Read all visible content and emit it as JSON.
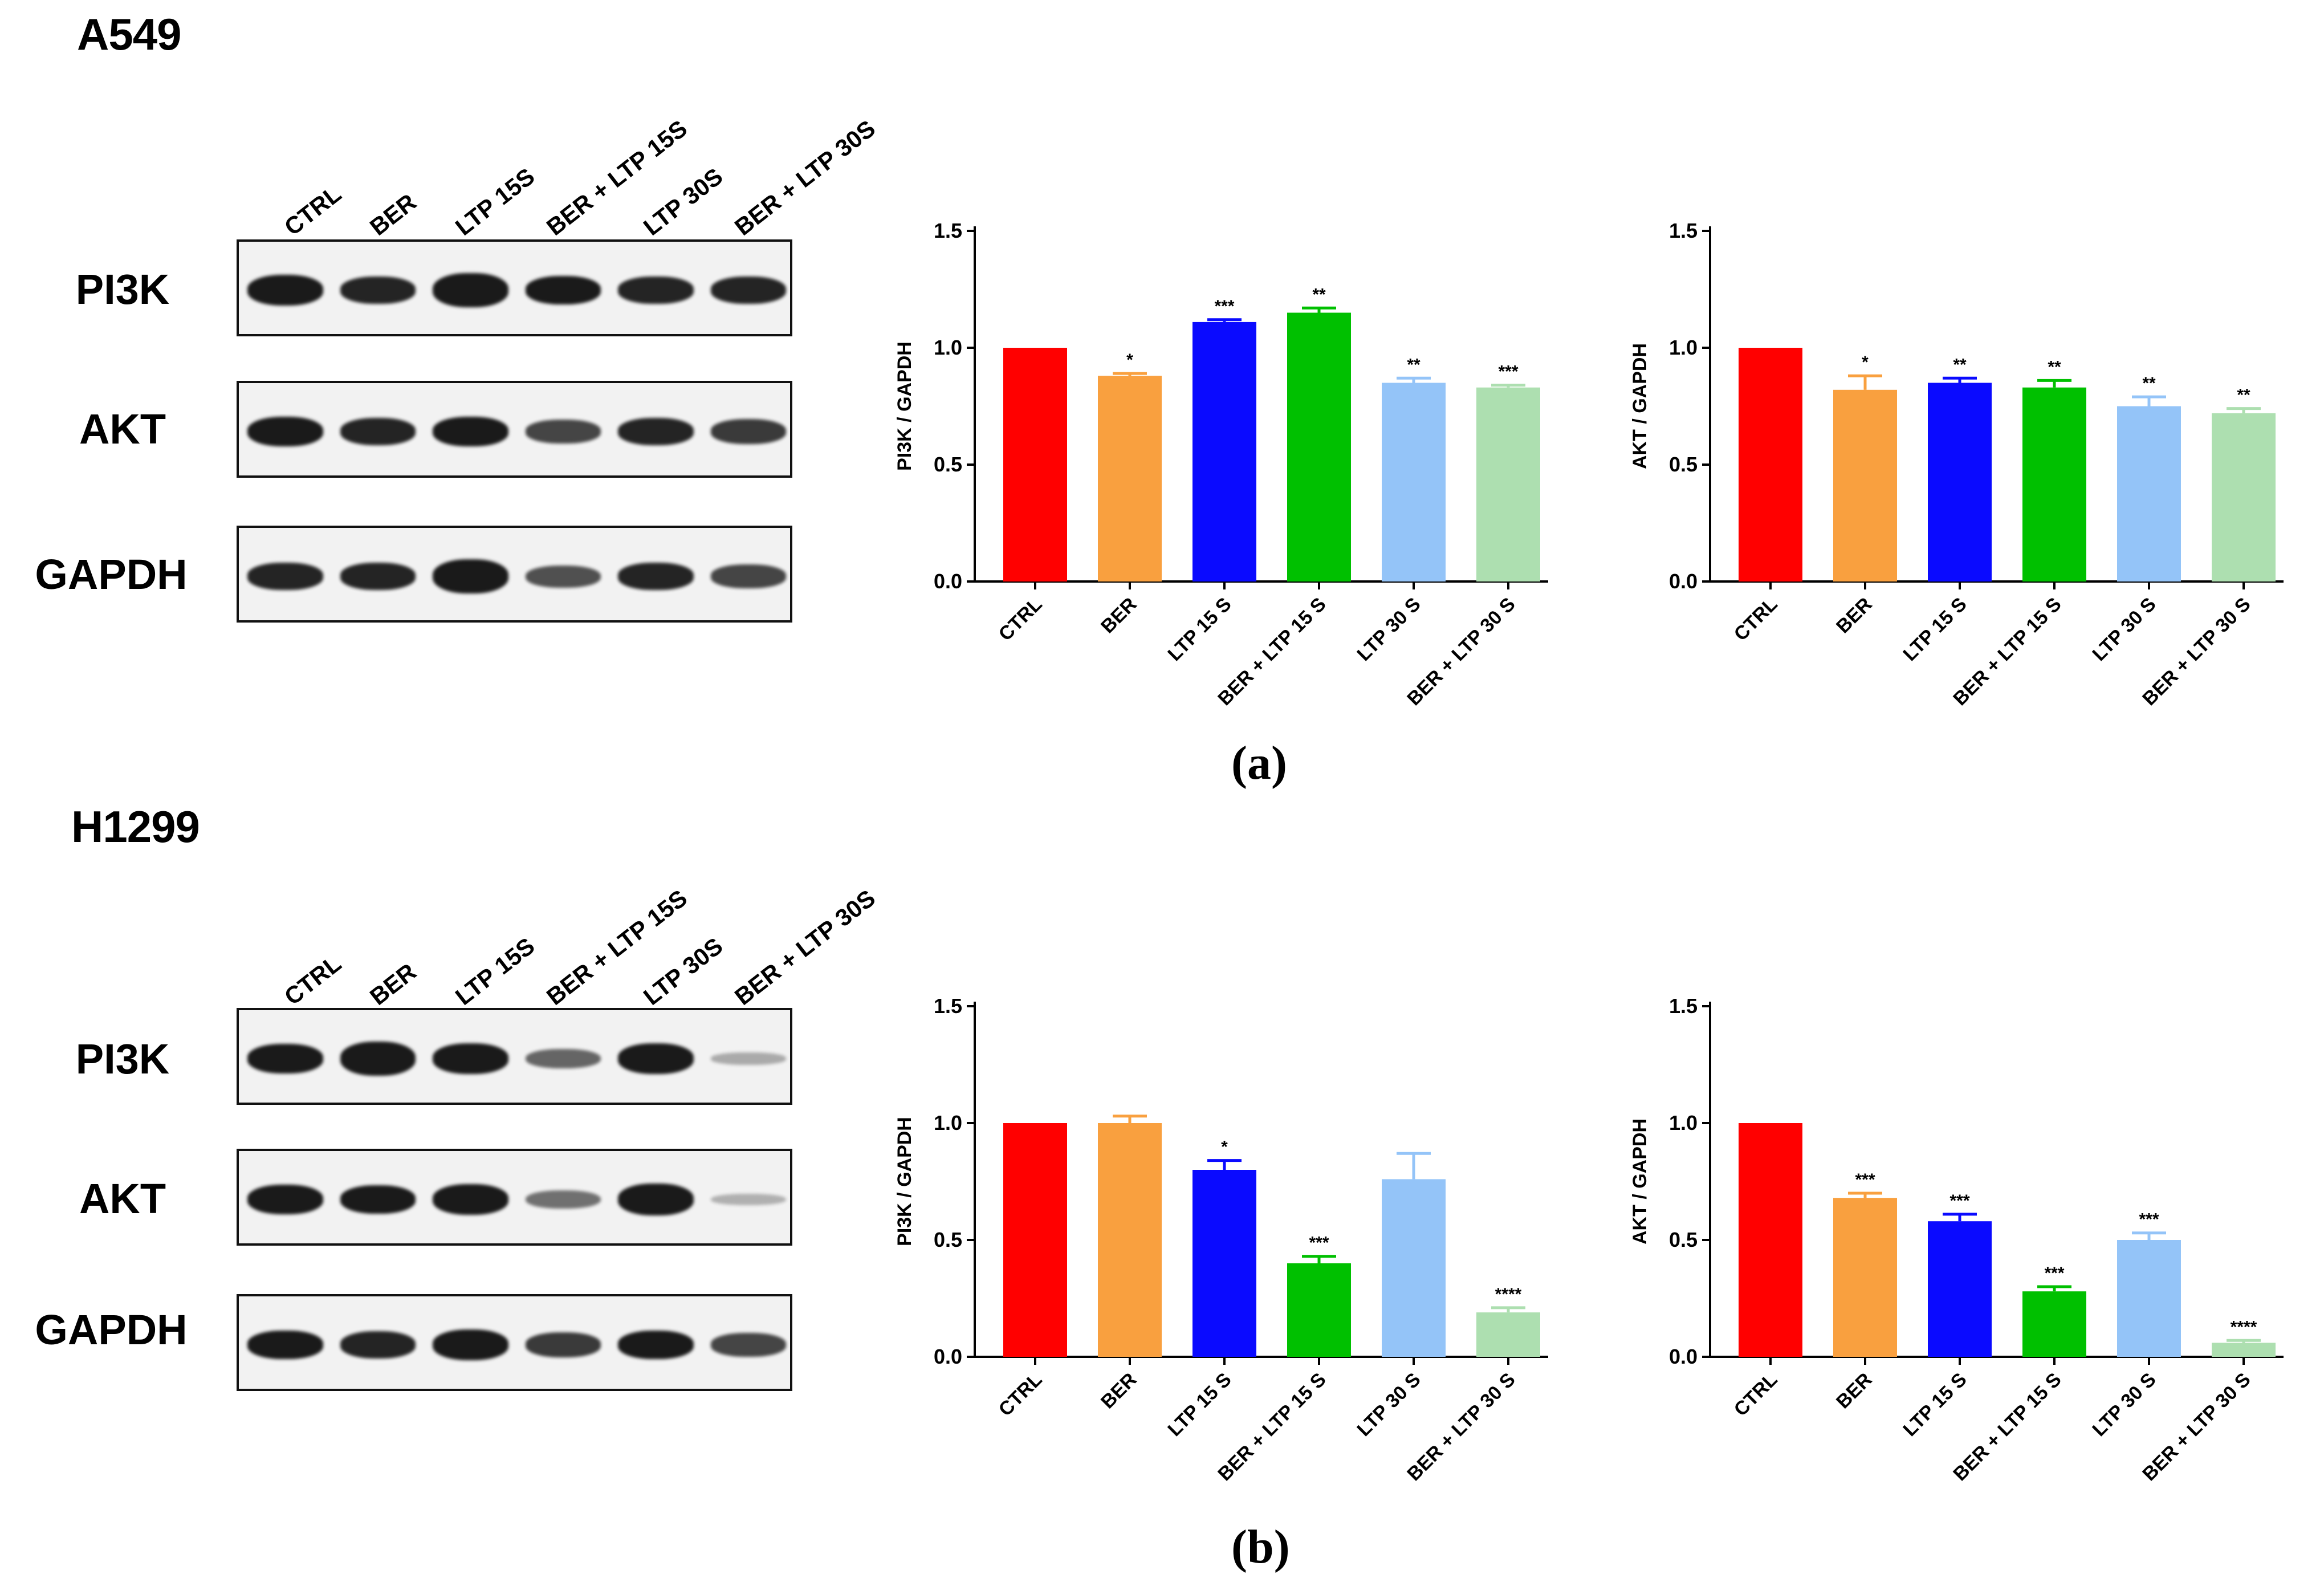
{
  "lanes": [
    "CTRL",
    "BER",
    "LTP 15S",
    "BER + LTP 15S",
    "LTP 30S",
    "BER + LTP 30S"
  ],
  "proteins": [
    "PI3K",
    "AKT",
    "GAPDH"
  ],
  "colors": {
    "CTRL": "#ff0000",
    "BER": "#f9a03f",
    "LTP 15 S": "#0a0aff",
    "BER + LTP 15 S": "#00c000",
    "LTP 30 S": "#94c4f8",
    "BER + LTP 30 S": "#addfb0"
  },
  "panels": [
    {
      "cell_line": "A549",
      "label": "(a)",
      "blot_intensity": {
        "PI3K": [
          0.85,
          0.7,
          1.0,
          0.75,
          0.7,
          0.7
        ],
        "AKT": [
          0.8,
          0.7,
          0.8,
          0.55,
          0.7,
          0.6
        ],
        "GAPDH": [
          0.7,
          0.7,
          1.0,
          0.5,
          0.7,
          0.55
        ]
      }
    },
    {
      "cell_line": "H1299",
      "label": "(b)",
      "blot_intensity": {
        "PI3K": [
          0.8,
          1.0,
          0.85,
          0.4,
          0.85,
          0.08
        ],
        "AKT": [
          0.8,
          0.75,
          0.85,
          0.35,
          0.9,
          0.05
        ],
        "GAPDH": [
          0.75,
          0.7,
          0.85,
          0.6,
          0.75,
          0.55
        ]
      }
    }
  ],
  "chart_data": [
    {
      "type": "bar",
      "panel": "(a)",
      "ylabel": "PI3K / GAPDH",
      "ylim": [
        0,
        1.5
      ],
      "yticks": [
        "0.0",
        "0.5",
        "1.0",
        "1.5"
      ],
      "categories": [
        "CTRL",
        "BER",
        "LTP 15 S",
        "BER + LTP 15 S",
        "LTP 30 S",
        "BER + LTP 30 S"
      ],
      "values": [
        1.0,
        0.88,
        1.11,
        1.15,
        0.85,
        0.83
      ],
      "errors": [
        0,
        0.01,
        0.01,
        0.02,
        0.02,
        0.01
      ],
      "significance": [
        "",
        "*",
        "***",
        "**",
        "**",
        "***"
      ]
    },
    {
      "type": "bar",
      "panel": "(a)",
      "ylabel": "AKT / GAPDH",
      "ylim": [
        0,
        1.5
      ],
      "yticks": [
        "0.0",
        "0.5",
        "1.0",
        "1.5"
      ],
      "categories": [
        "CTRL",
        "BER",
        "LTP 15 S",
        "BER + LTP 15 S",
        "LTP 30 S",
        "BER + LTP 30 S"
      ],
      "values": [
        1.0,
        0.82,
        0.85,
        0.83,
        0.75,
        0.72
      ],
      "errors": [
        0,
        0.06,
        0.02,
        0.03,
        0.04,
        0.02
      ],
      "significance": [
        "",
        "*",
        "**",
        "**",
        "**",
        "**"
      ]
    },
    {
      "type": "bar",
      "panel": "(b)",
      "ylabel": "PI3K / GAPDH",
      "ylim": [
        0,
        1.5
      ],
      "yticks": [
        "0.0",
        "0.5",
        "1.0",
        "1.5"
      ],
      "categories": [
        "CTRL",
        "BER",
        "LTP 15 S",
        "BER + LTP 15 S",
        "LTP 30 S",
        "BER + LTP 30 S"
      ],
      "values": [
        1.0,
        1.0,
        0.8,
        0.4,
        0.76,
        0.19
      ],
      "errors": [
        0,
        0.03,
        0.04,
        0.03,
        0.11,
        0.02
      ],
      "significance": [
        "",
        "",
        "*",
        "***",
        "",
        "****"
      ]
    },
    {
      "type": "bar",
      "panel": "(b)",
      "ylabel": "AKT / GAPDH",
      "ylim": [
        0,
        1.5
      ],
      "yticks": [
        "0.0",
        "0.5",
        "1.0",
        "1.5"
      ],
      "categories": [
        "CTRL",
        "BER",
        "LTP 15 S",
        "BER + LTP 15 S",
        "LTP 30 S",
        "BER + LTP 30 S"
      ],
      "values": [
        1.0,
        0.68,
        0.58,
        0.28,
        0.5,
        0.06
      ],
      "errors": [
        0,
        0.02,
        0.03,
        0.02,
        0.03,
        0.01
      ],
      "significance": [
        "",
        "***",
        "***",
        "***",
        "***",
        "****"
      ]
    }
  ]
}
